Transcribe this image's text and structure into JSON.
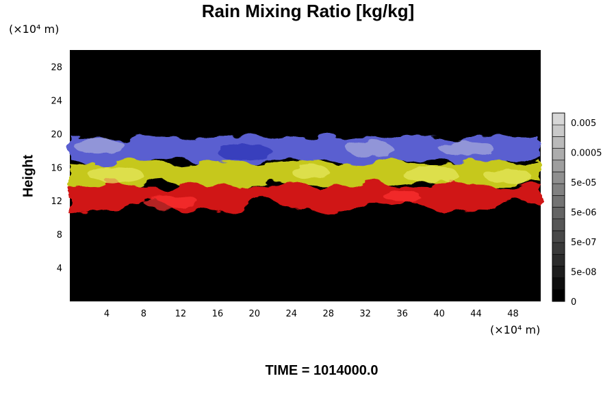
{
  "chart_data": {
    "type": "heatmap",
    "title": "Rain Mixing Ratio [kg/kg]",
    "xlabel": "",
    "ylabel": "Height",
    "x_unit": "(×10⁴ m)",
    "y_unit": "(×10⁴ m)",
    "footer": "TIME = 1014000.0",
    "xlim": [
      0,
      51
    ],
    "ylim": [
      0,
      30
    ],
    "x_ticks": [
      4,
      8,
      12,
      16,
      20,
      24,
      28,
      32,
      36,
      40,
      44,
      48
    ],
    "y_ticks": [
      4,
      8,
      12,
      16,
      20,
      24,
      28
    ],
    "background_color": "#000000",
    "bands": [
      {
        "name": "upper",
        "color": "#5a5fd0",
        "base_km": 16.6,
        "top_km": 19.6
      },
      {
        "name": "middle",
        "color": "#c6c81e",
        "base_km": 13.6,
        "top_km": 16.6
      },
      {
        "name": "lower",
        "color": "#d01212",
        "base_km": 11.2,
        "top_km": 13.8
      }
    ],
    "colorbar": {
      "labels": [
        "0.005",
        "0.0005",
        "5e-05",
        "5e-06",
        "5e-07",
        "5e-08",
        "0"
      ],
      "levels": 16
    }
  }
}
